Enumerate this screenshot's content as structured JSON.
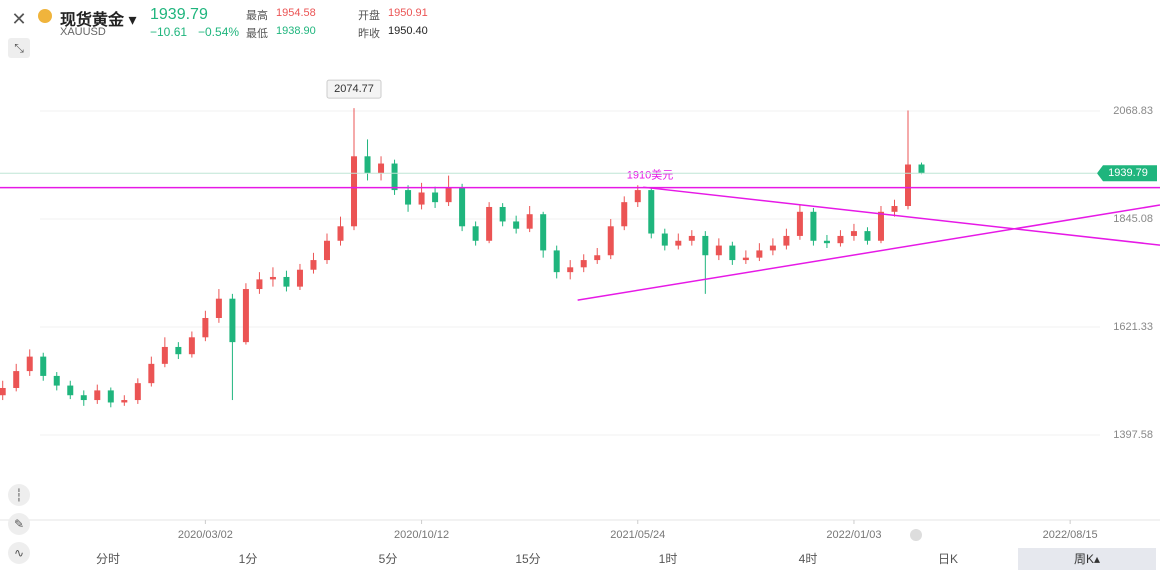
{
  "header": {
    "name": "现货黄金",
    "symbol": "XAUUSD",
    "price": "1939.79",
    "change": "−10.61",
    "change_pct": "−0.54%",
    "stats": [
      {
        "label": "最高",
        "value": "1954.58"
      },
      {
        "label": "开盘",
        "value": "1950.91"
      },
      {
        "label": "最低",
        "value": "1938.90"
      },
      {
        "label": "昨收",
        "value": "1950.40"
      }
    ]
  },
  "tabs": [
    "分时",
    "1分",
    "5分",
    "15分",
    "1时",
    "4时",
    "日K",
    "周K"
  ],
  "chart_data": {
    "type": "candlestick",
    "up_color": "#eb5454",
    "down_color": "#1fb57d",
    "x": [
      -30,
      -28,
      -26,
      -24,
      -22,
      -20,
      -18,
      -16,
      -14,
      -12,
      -10,
      -8,
      -6,
      -4,
      -2,
      0,
      2,
      4,
      6,
      8,
      10,
      12,
      14,
      16,
      18,
      20,
      22,
      24,
      26,
      28,
      30,
      32,
      34,
      36,
      38,
      40,
      42,
      44,
      46,
      48,
      50,
      52,
      54,
      56,
      58,
      60,
      62,
      64,
      66,
      68,
      70,
      72,
      74,
      76,
      78,
      80,
      82,
      84,
      86,
      88,
      90,
      92,
      94,
      96,
      98,
      100,
      102,
      104,
      106
    ],
    "open": [
      1480,
      1495,
      1530,
      1560,
      1520,
      1500,
      1480,
      1470,
      1490,
      1465,
      1470,
      1505,
      1545,
      1580,
      1565,
      1600,
      1640,
      1680,
      1590,
      1700,
      1720,
      1725,
      1705,
      1740,
      1760,
      1800,
      1830,
      1975,
      1940,
      1960,
      1905,
      1875,
      1900,
      1880,
      1910,
      1830,
      1800,
      1870,
      1840,
      1825,
      1855,
      1780,
      1735,
      1745,
      1760,
      1770,
      1830,
      1880,
      1905,
      1815,
      1790,
      1800,
      1810,
      1770,
      1790,
      1760,
      1765,
      1780,
      1790,
      1810,
      1860,
      1800,
      1795,
      1810,
      1820,
      1800,
      1860,
      1872,
      1958
    ],
    "high": [
      1510,
      1545,
      1575,
      1568,
      1528,
      1510,
      1490,
      1502,
      1496,
      1480,
      1515,
      1560,
      1600,
      1590,
      1612,
      1655,
      1700,
      1690,
      1712,
      1735,
      1745,
      1738,
      1752,
      1775,
      1815,
      1850,
      2074.77,
      2010,
      1975,
      1968,
      1915,
      1920,
      1912,
      1935,
      1918,
      1840,
      1880,
      1878,
      1852,
      1872,
      1860,
      1790,
      1760,
      1772,
      1785,
      1845,
      1892,
      1915,
      1910,
      1825,
      1815,
      1822,
      1820,
      1805,
      1798,
      1780,
      1795,
      1805,
      1825,
      1875,
      1868,
      1812,
      1822,
      1835,
      1828,
      1872,
      1885,
      2070,
      1962
    ],
    "low": [
      1470,
      1488,
      1520,
      1510,
      1490,
      1472,
      1458,
      1462,
      1455,
      1458,
      1462,
      1498,
      1538,
      1555,
      1558,
      1592,
      1630,
      1470,
      1585,
      1690,
      1705,
      1695,
      1698,
      1732,
      1752,
      1790,
      1822,
      1925,
      1925,
      1895,
      1860,
      1865,
      1868,
      1872,
      1820,
      1790,
      1795,
      1830,
      1815,
      1818,
      1765,
      1722,
      1720,
      1735,
      1752,
      1762,
      1822,
      1870,
      1805,
      1780,
      1782,
      1790,
      1690,
      1760,
      1750,
      1752,
      1758,
      1770,
      1782,
      1802,
      1790,
      1785,
      1788,
      1800,
      1792,
      1795,
      1850,
      1865,
      1938
    ],
    "close": [
      1495,
      1530,
      1560,
      1520,
      1500,
      1480,
      1470,
      1490,
      1465,
      1470,
      1505,
      1545,
      1580,
      1565,
      1600,
      1640,
      1680,
      1590,
      1700,
      1720,
      1725,
      1705,
      1740,
      1760,
      1800,
      1830,
      1975,
      1940,
      1960,
      1905,
      1875,
      1900,
      1880,
      1910,
      1830,
      1800,
      1870,
      1840,
      1825,
      1855,
      1780,
      1735,
      1745,
      1760,
      1770,
      1830,
      1880,
      1905,
      1815,
      1790,
      1800,
      1810,
      1770,
      1790,
      1760,
      1765,
      1780,
      1790,
      1810,
      1860,
      1800,
      1795,
      1810,
      1820,
      1800,
      1860,
      1872,
      1958,
      1940
    ],
    "xlim": [
      -30.4,
      141.3
    ],
    "ylim": [
      1221.5,
      2298.8
    ],
    "xticks": [
      {
        "value": 0,
        "label": "2020/03/02"
      },
      {
        "value": 32,
        "label": "2020/10/12"
      },
      {
        "value": 64,
        "label": "2021/05/24"
      },
      {
        "value": 96,
        "label": "2022/01/03"
      },
      {
        "value": 128,
        "label": "2022/08/15"
      }
    ],
    "yticks": [
      2068.83,
      1845.08,
      1621.33,
      1397.58
    ],
    "hline": {
      "value": 1910,
      "label": "1910美元",
      "color": "#e619e6"
    },
    "trendlines": [
      {
        "x": [
          55.1,
          141.3
        ],
        "y": [
          1677,
          1874
        ],
        "color": "#e619e6"
      },
      {
        "x": [
          64.8,
          141.3
        ],
        "y": [
          1911,
          1791
        ],
        "color": "#e619e6"
      }
    ]
  }
}
